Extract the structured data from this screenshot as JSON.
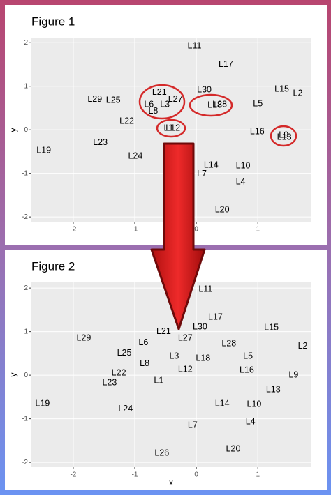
{
  "chart_data": [
    {
      "type": "scatter",
      "title": "Figure 1",
      "ylabel": "y",
      "xlim": [
        -2.68,
        1.86
      ],
      "ylim": [
        -2.11,
        2.1
      ],
      "xticks": [
        -2,
        -1,
        0,
        1
      ],
      "yticks": [
        -2,
        -1,
        0,
        1,
        2
      ],
      "grid": true,
      "labels": [
        "L11",
        "L17",
        "L30",
        "L15",
        "L2",
        "L21",
        "L27",
        "L29",
        "L25",
        "L6",
        "L3",
        "L8",
        "L18",
        "L28",
        "L5",
        "L22",
        "L1",
        "L12",
        "L16",
        "L9",
        "L13",
        "L23",
        "L19",
        "L24",
        "L14",
        "L10",
        "L7",
        "L4",
        "L20"
      ],
      "x": [
        -0.03,
        0.48,
        0.13,
        1.39,
        1.65,
        -0.6,
        -0.34,
        -1.65,
        -1.35,
        -0.77,
        -0.51,
        -0.7,
        0.3,
        0.38,
        1.0,
        -1.13,
        -0.45,
        -0.38,
        0.99,
        1.42,
        1.43,
        -1.56,
        -2.48,
        -0.99,
        0.24,
        0.76,
        0.09,
        0.72,
        0.42
      ],
      "y": [
        1.92,
        1.5,
        0.91,
        0.93,
        0.83,
        0.86,
        0.7,
        0.7,
        0.67,
        0.58,
        0.58,
        0.42,
        0.56,
        0.58,
        0.59,
        0.19,
        0.03,
        0.03,
        -0.05,
        -0.13,
        -0.18,
        -0.3,
        -0.48,
        -0.61,
        -0.82,
        -0.83,
        -1.02,
        -1.2,
        -1.84
      ]
    },
    {
      "type": "scatter",
      "title": "Figure 2",
      "xlabel": "x",
      "ylabel": "y",
      "xlim": [
        -2.68,
        1.86
      ],
      "ylim": [
        -2.11,
        2.13
      ],
      "xticks": [
        -2,
        -1,
        0,
        1
      ],
      "yticks": [
        -2,
        -1,
        0,
        1,
        2
      ],
      "grid": true,
      "labels": [
        "L11",
        "L17",
        "L15",
        "L2",
        "L30",
        "L21",
        "L27",
        "L29",
        "L6",
        "L28",
        "L25",
        "L5",
        "L3",
        "L18",
        "L8",
        "L12",
        "L16",
        "L22",
        "L9",
        "L1",
        "L23",
        "L13",
        "L19",
        "L14",
        "L10",
        "L24",
        "L4",
        "L7",
        "L20",
        "L26"
      ],
      "x": [
        0.15,
        0.31,
        1.22,
        1.73,
        0.06,
        -0.53,
        -0.18,
        -1.83,
        -0.86,
        0.53,
        -1.17,
        0.84,
        -0.36,
        0.11,
        -0.84,
        -0.18,
        0.82,
        -1.26,
        1.58,
        -0.61,
        -1.41,
        1.25,
        -2.5,
        0.42,
        0.94,
        -1.15,
        0.88,
        -0.06,
        0.6,
        -0.56
      ],
      "y": [
        1.97,
        1.33,
        1.09,
        0.66,
        1.1,
        1.0,
        0.85,
        0.85,
        0.74,
        0.72,
        0.5,
        0.43,
        0.43,
        0.38,
        0.26,
        0.13,
        0.11,
        0.05,
        0,
        -0.13,
        -0.18,
        -0.34,
        -0.66,
        -0.66,
        -0.67,
        -0.78,
        -1.07,
        -1.15,
        -1.7,
        -1.79
      ]
    }
  ]
}
